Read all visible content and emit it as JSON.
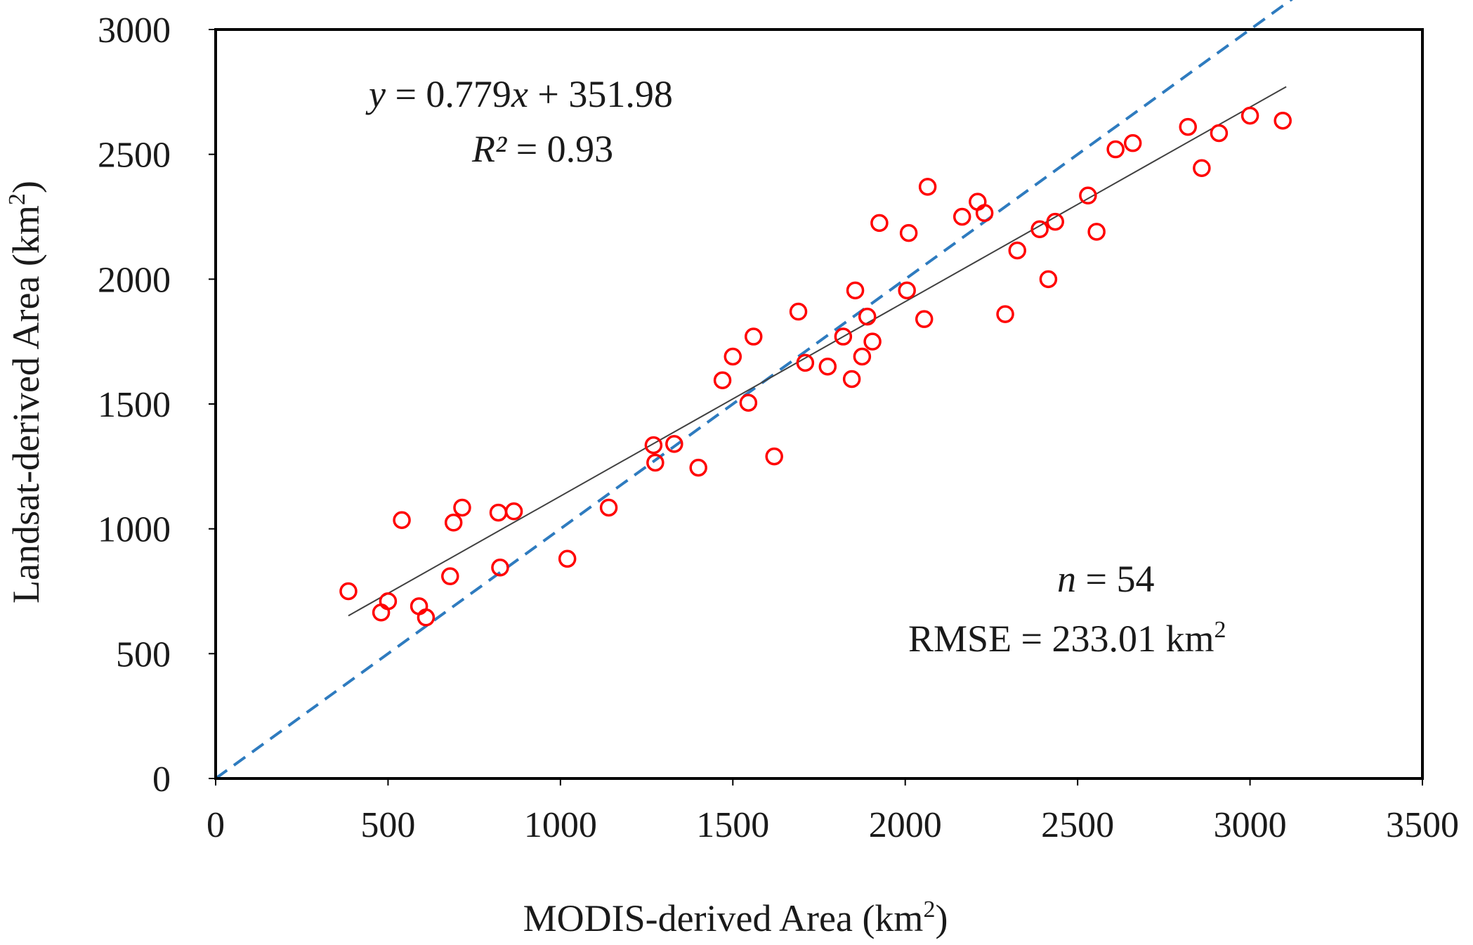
{
  "chart_data": {
    "type": "scatter",
    "xlabel": "MODIS-derived Area (km",
    "xlabel_sup": "2",
    "xlabel_tail": ")",
    "ylabel": "Landsat-derived Area (km",
    "ylabel_sup": "2",
    "ylabel_tail": ")",
    "xlim": [
      0,
      3500
    ],
    "ylim": [
      0,
      3000
    ],
    "xticks": [
      0,
      500,
      1000,
      1500,
      2000,
      2500,
      3000,
      3500
    ],
    "yticks": [
      0,
      500,
      1000,
      1500,
      2000,
      2500,
      3000
    ],
    "xtick_labels": [
      "0",
      "500",
      "1000",
      "1500",
      "2000",
      "2500",
      "3000",
      "3500"
    ],
    "ytick_labels": [
      "0",
      "500",
      "1000",
      "1500",
      "2000",
      "2500",
      "3000"
    ],
    "grid": false,
    "marker_color": "#ff0000",
    "fit_line_color": "#404040",
    "one_to_one_color": "#2e7bbf",
    "fit": {
      "slope": 0.779,
      "intercept": 351.98,
      "x_range": [
        385,
        3105
      ]
    },
    "one_to_one": {
      "x_range": [
        0,
        3500
      ]
    },
    "annotations": {
      "equation_y": "y",
      "equation_eq": " = 0.779",
      "equation_x": "x",
      "equation_rest": " + 351.98",
      "r2_label": "R²",
      "r2_rest": " = 0.93",
      "n_label": "n",
      "n_rest": " = 54",
      "rmse_text": "RMSE =  233.01 km",
      "rmse_sup": "2"
    },
    "points": [
      [
        385,
        750
      ],
      [
        480,
        665
      ],
      [
        500,
        710
      ],
      [
        540,
        1035
      ],
      [
        590,
        690
      ],
      [
        610,
        645
      ],
      [
        680,
        810
      ],
      [
        690,
        1025
      ],
      [
        715,
        1085
      ],
      [
        820,
        1065
      ],
      [
        825,
        845
      ],
      [
        865,
        1070
      ],
      [
        1020,
        880
      ],
      [
        1140,
        1085
      ],
      [
        1270,
        1335
      ],
      [
        1275,
        1265
      ],
      [
        1330,
        1340
      ],
      [
        1400,
        1245
      ],
      [
        1470,
        1595
      ],
      [
        1500,
        1690
      ],
      [
        1545,
        1505
      ],
      [
        1560,
        1770
      ],
      [
        1620,
        1290
      ],
      [
        1690,
        1870
      ],
      [
        1710,
        1665
      ],
      [
        1775,
        1650
      ],
      [
        1820,
        1770
      ],
      [
        1845,
        1600
      ],
      [
        1855,
        1955
      ],
      [
        1875,
        1690
      ],
      [
        1890,
        1850
      ],
      [
        1905,
        1750
      ],
      [
        1925,
        2225
      ],
      [
        2005,
        1955
      ],
      [
        2010,
        2185
      ],
      [
        2055,
        1840
      ],
      [
        2065,
        2370
      ],
      [
        2165,
        2250
      ],
      [
        2210,
        2310
      ],
      [
        2230,
        2265
      ],
      [
        2290,
        1860
      ],
      [
        2325,
        2115
      ],
      [
        2390,
        2200
      ],
      [
        2415,
        2000
      ],
      [
        2435,
        2230
      ],
      [
        2530,
        2335
      ],
      [
        2555,
        2190
      ],
      [
        2610,
        2520
      ],
      [
        2660,
        2545
      ],
      [
        2820,
        2610
      ],
      [
        2860,
        2445
      ],
      [
        2910,
        2585
      ],
      [
        3000,
        2655
      ],
      [
        3095,
        2635
      ]
    ]
  }
}
